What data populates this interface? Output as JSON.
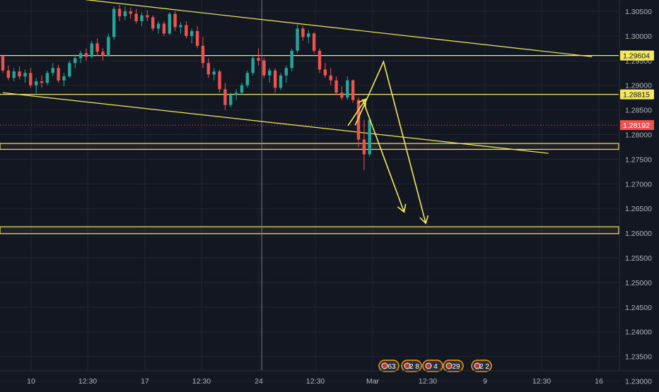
{
  "colors": {
    "background": "#131722",
    "grid": "#1f2433",
    "axis_text": "#b2b5be",
    "up_candle": "#26a69a",
    "down_candle": "#ef5350",
    "drawing": "#f5e85d",
    "price_line": "#ef5350",
    "crosshair": "#787b86",
    "event_badge": "#ff9800"
  },
  "chart_data": {
    "type": "candlestick",
    "title": "",
    "xlabel": "",
    "ylabel": "",
    "ylim": [
      1.2285,
      1.3073
    ],
    "y_ticks": [
      "1.30500",
      "1.30000",
      "1.29500",
      "1.29000",
      "1.28500",
      "1.28000",
      "1.27500",
      "1.27000",
      "1.26500",
      "1.26000",
      "1.25500",
      "1.25000",
      "1.24500",
      "1.24000",
      "1.23500",
      "1.23000"
    ],
    "x_ticks": [
      "10",
      "12:30",
      "17",
      "12:30",
      "24",
      "12:30",
      "Mar",
      "12:30",
      "9",
      "12:30",
      "16"
    ],
    "grid": true,
    "current_price": "1.28192",
    "price_labels": [
      {
        "text": "1.29604",
        "value": 1.29604,
        "style": "line"
      },
      {
        "text": "1.28815",
        "value": 1.28815,
        "style": "line"
      },
      {
        "text": "1.28192",
        "value": 1.28192,
        "style": "current"
      }
    ],
    "horizontal_lines": [
      1.29604,
      1.28815
    ],
    "zones": [
      {
        "top": 1.2782,
        "bottom": 1.277
      },
      {
        "top": 1.2613,
        "bottom": 1.2599
      }
    ],
    "trendlines": [
      {
        "x1": 13.8,
        "y1": 1.3075,
        "x2": 106.0,
        "y2": 1.2958
      },
      {
        "x1": 0.0,
        "y1": 1.2885,
        "x2": 98.2,
        "y2": 1.2762
      }
    ],
    "crosshair_x": 46.6,
    "arrows": [
      {
        "points": [
          [
            62.1,
            1.2818
          ],
          [
            65.3,
            1.2872
          ]
        ]
      },
      {
        "points": [
          [
            63.4,
            1.2819
          ],
          [
            68.5,
            1.2948
          ],
          [
            76.1,
            1.262
          ]
        ]
      },
      {
        "points": [
          [
            64.7,
            1.2872
          ],
          [
            72.2,
            1.2643
          ]
        ]
      }
    ],
    "event_badges": [
      "63",
      "2 8",
      "4",
      "29",
      "2 2"
    ],
    "candles": [
      [
        1.296,
        1.2962,
        1.2925,
        1.293
      ],
      [
        1.293,
        1.294,
        1.291,
        1.2915
      ],
      [
        1.2915,
        1.2935,
        1.2908,
        1.2928
      ],
      [
        1.2928,
        1.2938,
        1.2912,
        1.2918
      ],
      [
        1.2918,
        1.2932,
        1.2905,
        1.2925
      ],
      [
        1.2925,
        1.2935,
        1.2895,
        1.29
      ],
      [
        1.29,
        1.2915,
        1.288,
        1.2908
      ],
      [
        1.2908,
        1.292,
        1.2895,
        1.2905
      ],
      [
        1.2905,
        1.293,
        1.29,
        1.2925
      ],
      [
        1.2925,
        1.2945,
        1.2918,
        1.2935
      ],
      [
        1.2935,
        1.2942,
        1.2905,
        1.291
      ],
      [
        1.291,
        1.2925,
        1.2898,
        1.2918
      ],
      [
        1.2918,
        1.295,
        1.2915,
        1.2945
      ],
      [
        1.2945,
        1.2962,
        1.2935,
        1.2955
      ],
      [
        1.2955,
        1.297,
        1.2945,
        1.2965
      ],
      [
        1.2965,
        1.2975,
        1.295,
        1.2958
      ],
      [
        1.2958,
        1.299,
        1.2955,
        1.2985
      ],
      [
        1.2985,
        1.2995,
        1.296,
        1.2968
      ],
      [
        1.2968,
        1.2975,
        1.295,
        1.296
      ],
      [
        1.296,
        1.3005,
        1.2958,
        1.2998
      ],
      [
        1.2998,
        1.306,
        1.2992,
        1.3055
      ],
      [
        1.3055,
        1.3063,
        1.303,
        1.304
      ],
      [
        1.304,
        1.306,
        1.3032,
        1.305
      ],
      [
        1.305,
        1.3058,
        1.3035,
        1.3045
      ],
      [
        1.3045,
        1.3055,
        1.3025,
        1.303
      ],
      [
        1.303,
        1.3048,
        1.302,
        1.3042
      ],
      [
        1.3042,
        1.3052,
        1.303,
        1.3038
      ],
      [
        1.3038,
        1.3042,
        1.301,
        1.3015
      ],
      [
        1.3015,
        1.303,
        1.3005,
        1.3025
      ],
      [
        1.3025,
        1.303,
        1.3,
        1.3005
      ],
      [
        1.3005,
        1.3048,
        1.3002,
        1.3045
      ],
      [
        1.3045,
        1.305,
        1.301,
        1.3018
      ],
      [
        1.3018,
        1.3028,
        1.3005,
        1.3022
      ],
      [
        1.3022,
        1.303,
        1.2995,
        1.3
      ],
      [
        1.3,
        1.3015,
        1.2985,
        1.301
      ],
      [
        1.301,
        1.302,
        1.2975,
        1.298
      ],
      [
        1.298,
        1.2998,
        1.2935,
        1.2945
      ],
      [
        1.2945,
        1.2955,
        1.2915,
        1.2922
      ],
      [
        1.2922,
        1.2935,
        1.291,
        1.2928
      ],
      [
        1.2928,
        1.2932,
        1.2885,
        1.2892
      ],
      [
        1.2892,
        1.2905,
        1.285,
        1.286
      ],
      [
        1.286,
        1.2885,
        1.2855,
        1.288
      ],
      [
        1.288,
        1.2892,
        1.287,
        1.2885
      ],
      [
        1.2885,
        1.2905,
        1.288,
        1.29
      ],
      [
        1.29,
        1.293,
        1.2895,
        1.2925
      ],
      [
        1.2925,
        1.296,
        1.292,
        1.2955
      ],
      [
        1.2955,
        1.2975,
        1.294,
        1.295
      ],
      [
        1.295,
        1.2955,
        1.2915,
        1.292
      ],
      [
        1.292,
        1.2935,
        1.2905,
        1.293
      ],
      [
        1.293,
        1.2935,
        1.2885,
        1.2895
      ],
      [
        1.2895,
        1.2925,
        1.289,
        1.292
      ],
      [
        1.292,
        1.294,
        1.2905,
        1.2935
      ],
      [
        1.2935,
        1.2975,
        1.2928,
        1.297
      ],
      [
        1.297,
        1.3025,
        1.2965,
        1.3015
      ],
      [
        1.3015,
        1.302,
        1.299,
        1.2998
      ],
      [
        1.2998,
        1.3012,
        1.2985,
        1.3005
      ],
      [
        1.3005,
        1.3008,
        1.2965,
        1.297
      ],
      [
        1.297,
        1.2975,
        1.2925,
        1.2932
      ],
      [
        1.2932,
        1.2945,
        1.2915,
        1.292
      ],
      [
        1.292,
        1.2935,
        1.29,
        1.291
      ],
      [
        1.291,
        1.2918,
        1.288,
        1.2885
      ],
      [
        1.2885,
        1.2898,
        1.287,
        1.2875
      ],
      [
        1.2875,
        1.2918,
        1.287,
        1.291
      ],
      [
        1.291,
        1.2912,
        1.2865,
        1.287
      ],
      [
        1.287,
        1.2875,
        1.2775,
        1.279
      ],
      [
        1.279,
        1.283,
        1.2728,
        1.276
      ],
      [
        1.276,
        1.2835,
        1.2755,
        1.283
      ]
    ]
  }
}
